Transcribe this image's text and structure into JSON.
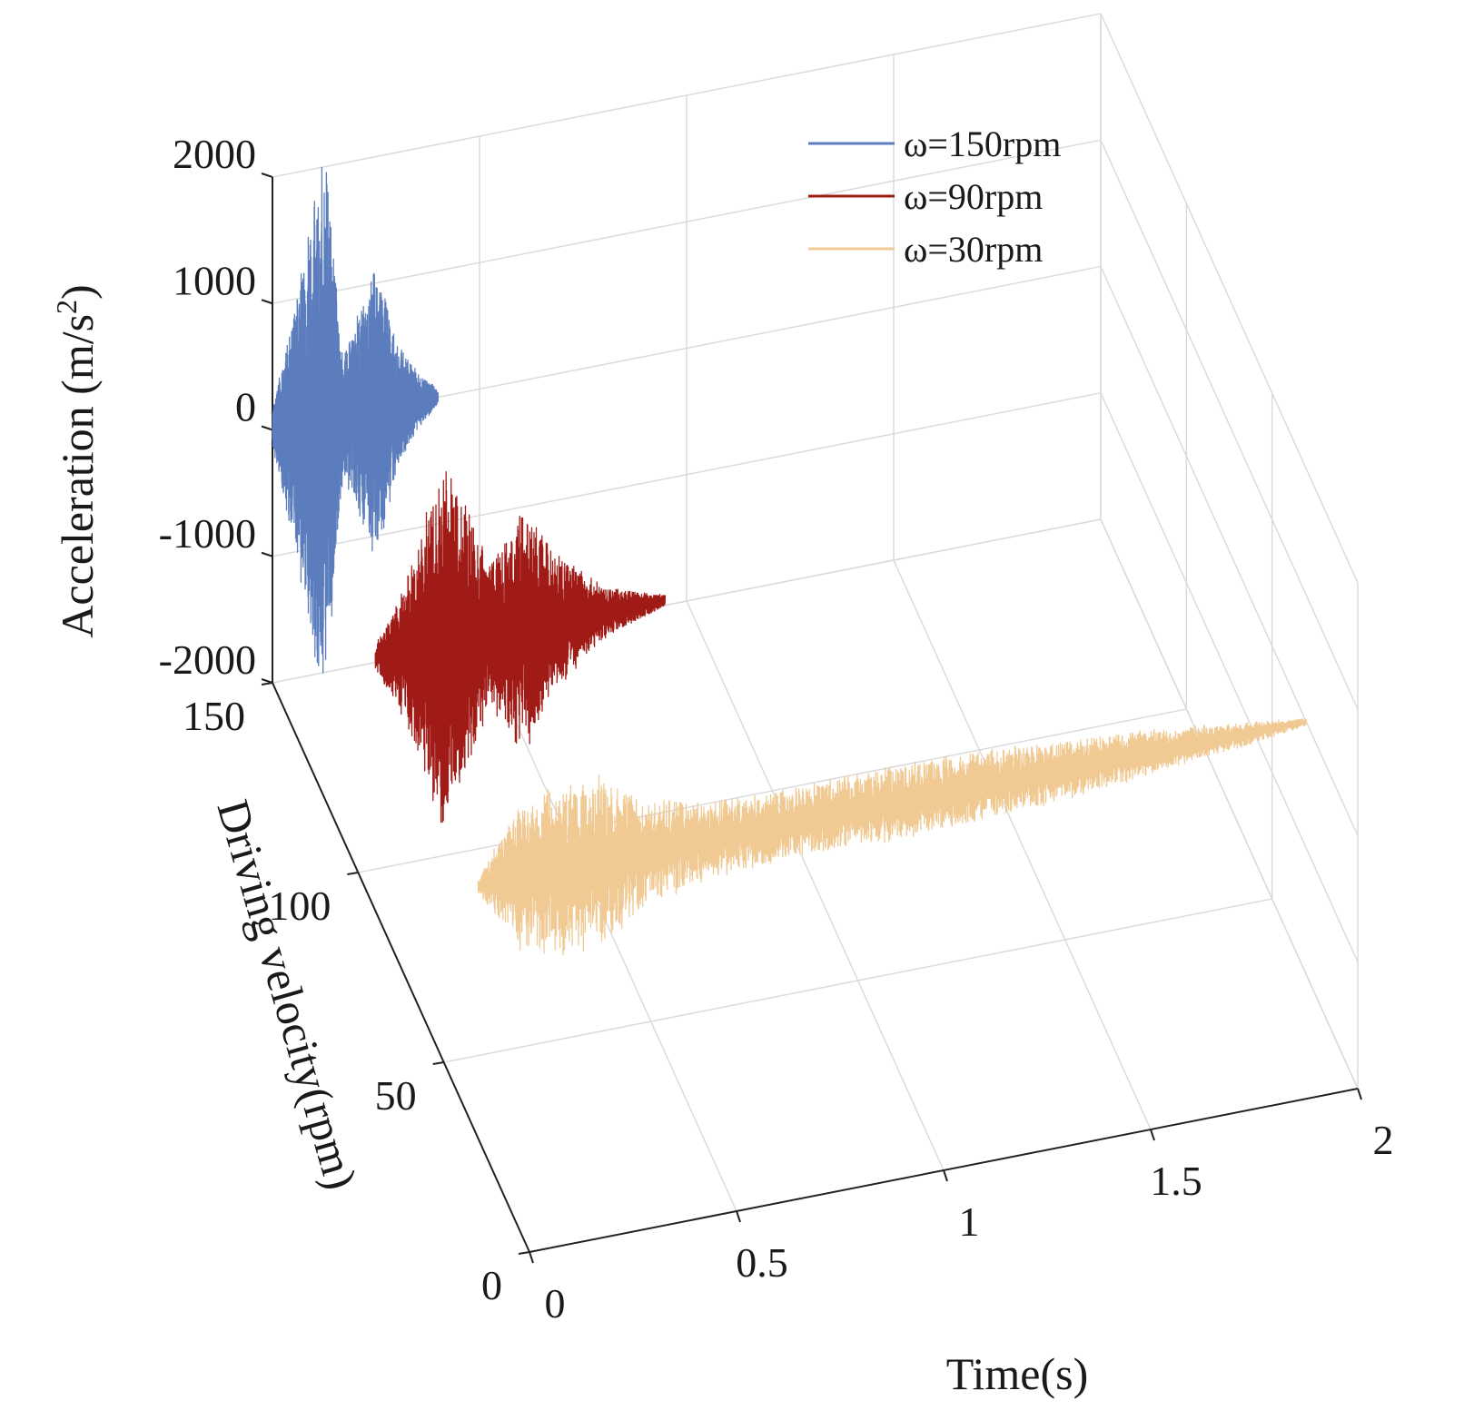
{
  "chart_data": {
    "type": "line",
    "projection": "3d",
    "title": "",
    "xlabel": "Time(s)",
    "ylabel": "Driving velocity(rpm)",
    "zlabel": "Acceleration (m/s",
    "zlabel_sup": "2",
    "zlabel_end": ")",
    "xlim": [
      0,
      2
    ],
    "ylim": [
      0,
      150
    ],
    "zlim": [
      -2000,
      2000
    ],
    "x_ticks": [
      0,
      0.5,
      1,
      1.5,
      2
    ],
    "x_tick_labels": [
      "0",
      "0.5",
      "1",
      "1.5",
      "2"
    ],
    "y_ticks": [
      0,
      50,
      100,
      150
    ],
    "y_tick_labels": [
      "0",
      "50",
      "100",
      "150"
    ],
    "z_ticks": [
      -2000,
      -1000,
      0,
      1000,
      2000
    ],
    "z_tick_labels": [
      "-2000",
      "-1000",
      "0",
      "1000",
      "2000"
    ],
    "grid": true,
    "legend_position": "top-right",
    "series": [
      {
        "name": "ω=150rpm",
        "driving_velocity": 150,
        "color": "#5b7dbd",
        "duration": 0.4,
        "envelope_time": [
          0,
          0.05,
          0.1,
          0.13,
          0.17,
          0.22,
          0.25,
          0.3,
          0.35,
          0.4
        ],
        "envelope_amplitude": [
          150,
          850,
          1750,
          2000,
          450,
          850,
          1150,
          500,
          220,
          60
        ]
      },
      {
        "name": "ω=90rpm",
        "driving_velocity": 90,
        "color": "#a01a16",
        "duration": 0.7,
        "envelope_time": [
          0,
          0.05,
          0.1,
          0.16,
          0.22,
          0.28,
          0.36,
          0.44,
          0.55,
          0.7
        ],
        "envelope_amplitude": [
          100,
          350,
          800,
          1350,
          1050,
          550,
          950,
          500,
          200,
          40
        ]
      },
      {
        "name": "ω=30rpm",
        "driving_velocity": 30,
        "color": "#f0c993",
        "duration": 2.0,
        "envelope_time": [
          0,
          0.1,
          0.2,
          0.3,
          0.4,
          0.55,
          0.75,
          1.0,
          1.2,
          1.4,
          1.6,
          1.8,
          2.0
        ],
        "envelope_amplitude": [
          60,
          550,
          650,
          650,
          420,
          300,
          260,
          280,
          270,
          230,
          180,
          110,
          30
        ]
      }
    ]
  }
}
